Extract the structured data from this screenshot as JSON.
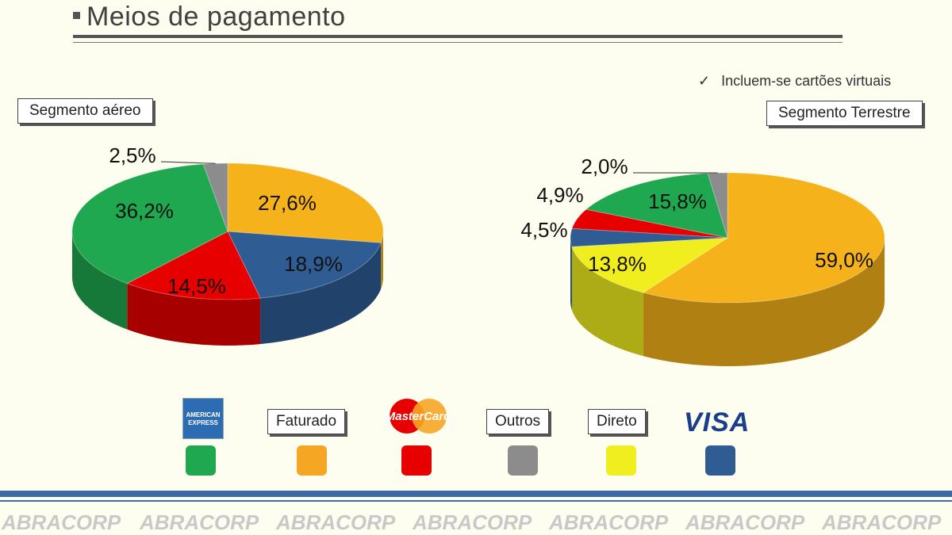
{
  "page": {
    "title": "Meios de pagamento",
    "note": "Incluem-se cartões virtuais",
    "watermark": "ABRACORP"
  },
  "legend": {
    "amex_label": "AMERICAN EXPRESS",
    "faturado": "Faturado",
    "mastercard": "MasterCard",
    "outros": "Outros",
    "direto": "Direto",
    "visa": "VISA"
  },
  "colors": {
    "amex": "#1fa84f",
    "faturado": "#f5a623",
    "mastercard": "#e60000",
    "outros": "#8c8c8c",
    "direto": "#f0ee1f",
    "visa": "#2e5c93",
    "faturado_pie": "#f5b21b"
  },
  "chart_data": [
    {
      "type": "pie",
      "title": "Segmento aéreo",
      "series": [
        {
          "name": "Faturado",
          "value": 27.6,
          "label": "27,6%"
        },
        {
          "name": "VISA",
          "value": 18.9,
          "label": "18,9%"
        },
        {
          "name": "MasterCard",
          "value": 14.5,
          "label": "14,5%"
        },
        {
          "name": "American Express",
          "value": 36.2,
          "label": "36,2%"
        },
        {
          "name": "Outros",
          "value": 2.5,
          "label": "2,5%"
        }
      ]
    },
    {
      "type": "pie",
      "title": "Segmento Terrestre",
      "series": [
        {
          "name": "Faturado",
          "value": 59.0,
          "label": "59,0%"
        },
        {
          "name": "Direto",
          "value": 13.8,
          "label": "13,8%"
        },
        {
          "name": "VISA",
          "value": 4.5,
          "label": "4,5%"
        },
        {
          "name": "MasterCard",
          "value": 4.9,
          "label": "4,9%"
        },
        {
          "name": "American Express",
          "value": 15.8,
          "label": "15,8%"
        },
        {
          "name": "Outros",
          "value": 2.0,
          "label": "2,0%"
        }
      ]
    }
  ]
}
